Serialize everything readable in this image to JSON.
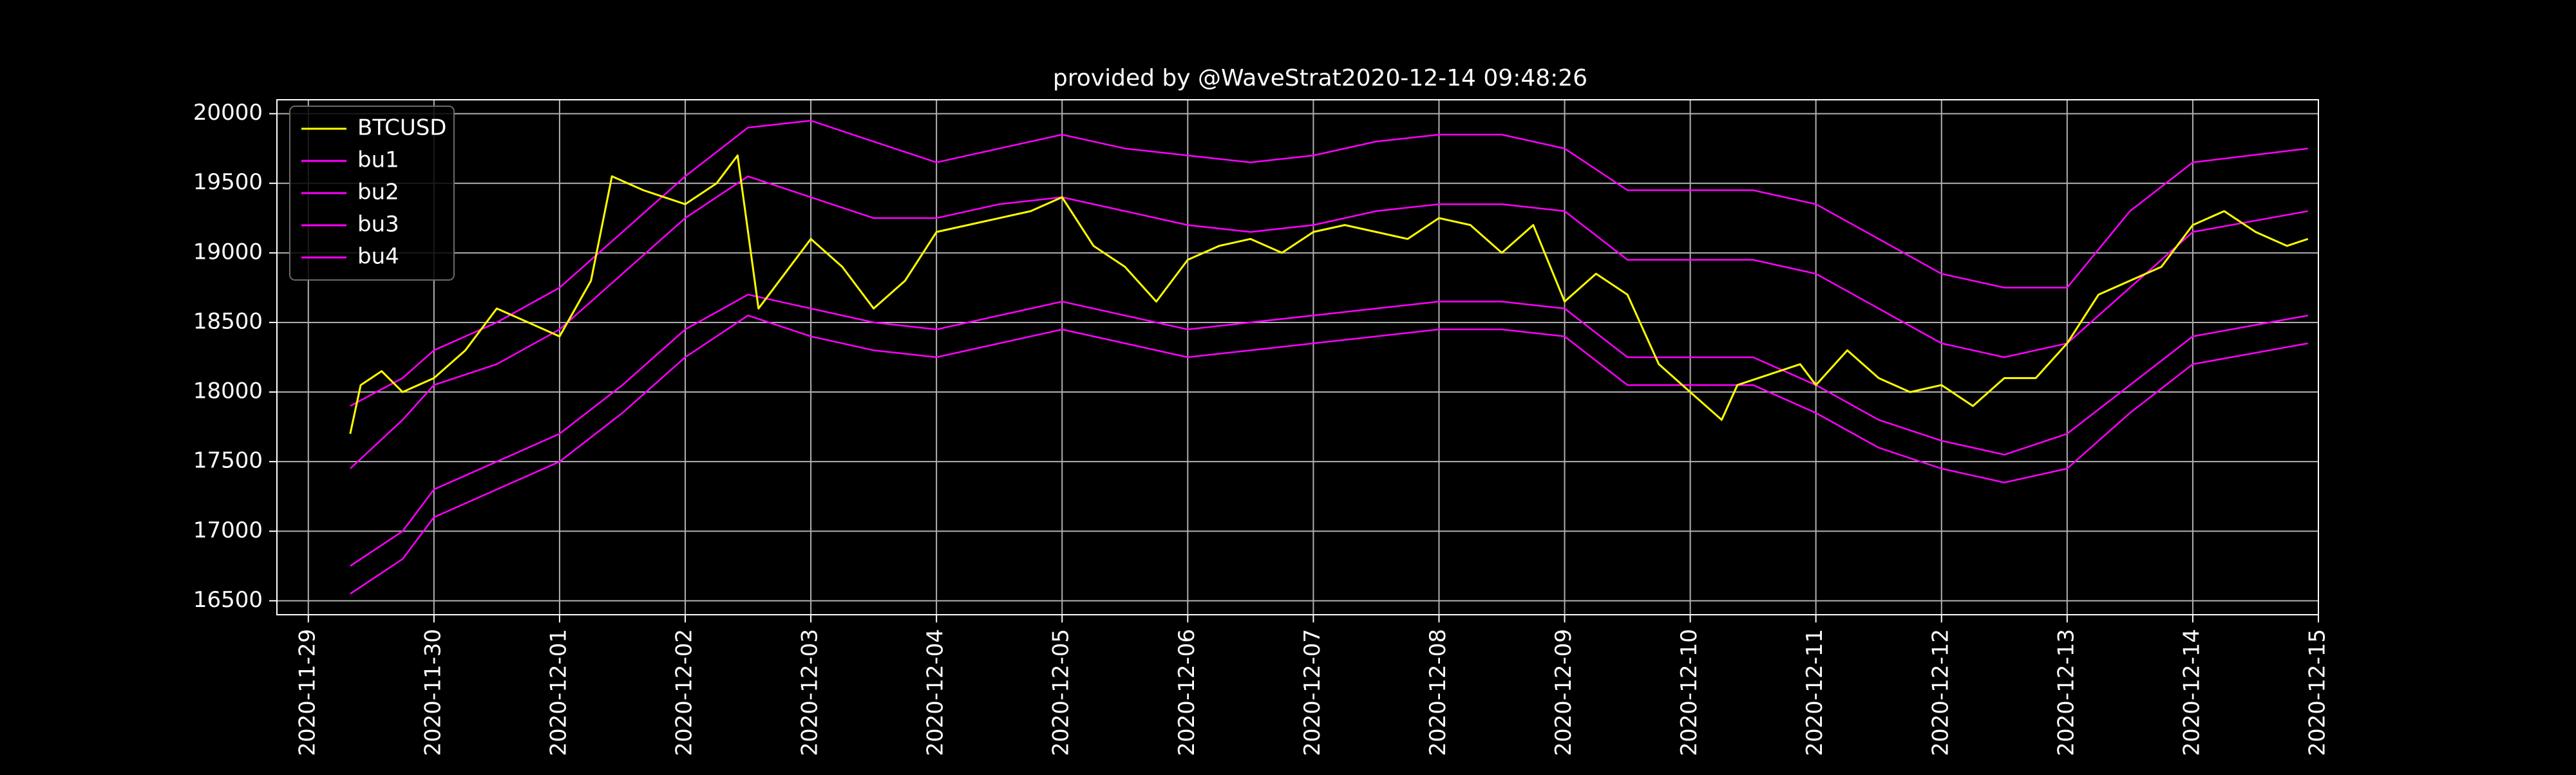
{
  "chart_data": {
    "type": "line",
    "title": "provided by @WaveStrat2020-12-14 09:48:26",
    "xlabel": "",
    "ylabel": "",
    "x_type": "date",
    "xlim": [
      "2020-11-28T18:00",
      "2020-12-15T00:00"
    ],
    "ylim": [
      16400,
      20100
    ],
    "x_ticks": [
      "2020-11-29",
      "2020-11-30",
      "2020-12-01",
      "2020-12-02",
      "2020-12-03",
      "2020-12-04",
      "2020-12-05",
      "2020-12-06",
      "2020-12-07",
      "2020-12-08",
      "2020-12-09",
      "2020-12-10",
      "2020-12-11",
      "2020-12-12",
      "2020-12-13",
      "2020-12-14",
      "2020-12-15"
    ],
    "y_ticks": [
      16500,
      17000,
      17500,
      18000,
      18500,
      19000,
      19500,
      20000
    ],
    "grid": true,
    "legend_position": "top-left",
    "colors": {
      "background": "#000000",
      "grid": "#b0b0b0",
      "text": "#ffffff",
      "price": "#ffff00",
      "bands": "#ff00ff"
    },
    "series": [
      {
        "name": "BTCUSD",
        "color": "#ffff00",
        "points": [
          [
            "2020-11-29T08:00",
            17700
          ],
          [
            "2020-11-29T10:00",
            18050
          ],
          [
            "2020-11-29T14:00",
            18150
          ],
          [
            "2020-11-29T18:00",
            18000
          ],
          [
            "2020-11-30T00:00",
            18100
          ],
          [
            "2020-11-30T06:00",
            18300
          ],
          [
            "2020-11-30T12:00",
            18600
          ],
          [
            "2020-11-30T18:00",
            18500
          ],
          [
            "2020-12-01T00:00",
            18400
          ],
          [
            "2020-12-01T06:00",
            18800
          ],
          [
            "2020-12-01T10:00",
            19550
          ],
          [
            "2020-12-01T16:00",
            19450
          ],
          [
            "2020-12-02T00:00",
            19350
          ],
          [
            "2020-12-02T06:00",
            19500
          ],
          [
            "2020-12-02T10:00",
            19700
          ],
          [
            "2020-12-02T14:00",
            18600
          ],
          [
            "2020-12-03T00:00",
            19100
          ],
          [
            "2020-12-03T06:00",
            18900
          ],
          [
            "2020-12-03T12:00",
            18600
          ],
          [
            "2020-12-03T18:00",
            18800
          ],
          [
            "2020-12-04T00:00",
            19150
          ],
          [
            "2020-12-04T06:00",
            19200
          ],
          [
            "2020-12-04T12:00",
            19250
          ],
          [
            "2020-12-04T18:00",
            19300
          ],
          [
            "2020-12-05T00:00",
            19400
          ],
          [
            "2020-12-05T06:00",
            19050
          ],
          [
            "2020-12-05T12:00",
            18900
          ],
          [
            "2020-12-05T18:00",
            18650
          ],
          [
            "2020-12-06T00:00",
            18950
          ],
          [
            "2020-12-06T06:00",
            19050
          ],
          [
            "2020-12-06T12:00",
            19100
          ],
          [
            "2020-12-06T18:00",
            19000
          ],
          [
            "2020-12-07T00:00",
            19150
          ],
          [
            "2020-12-07T06:00",
            19200
          ],
          [
            "2020-12-07T12:00",
            19150
          ],
          [
            "2020-12-07T18:00",
            19100
          ],
          [
            "2020-12-08T00:00",
            19250
          ],
          [
            "2020-12-08T06:00",
            19200
          ],
          [
            "2020-12-08T12:00",
            19000
          ],
          [
            "2020-12-08T18:00",
            19200
          ],
          [
            "2020-12-09T00:00",
            18650
          ],
          [
            "2020-12-09T06:00",
            18850
          ],
          [
            "2020-12-09T12:00",
            18700
          ],
          [
            "2020-12-09T18:00",
            18200
          ],
          [
            "2020-12-10T00:00",
            18000
          ],
          [
            "2020-12-10T06:00",
            17800
          ],
          [
            "2020-12-10T09:00",
            18050
          ],
          [
            "2020-12-10T21:00",
            18200
          ],
          [
            "2020-12-11T00:00",
            18050
          ],
          [
            "2020-12-11T06:00",
            18300
          ],
          [
            "2020-12-11T12:00",
            18100
          ],
          [
            "2020-12-11T18:00",
            18000
          ],
          [
            "2020-12-12T00:00",
            18050
          ],
          [
            "2020-12-12T06:00",
            17900
          ],
          [
            "2020-12-12T12:00",
            18100
          ],
          [
            "2020-12-12T18:00",
            18100
          ],
          [
            "2020-12-13T00:00",
            18350
          ],
          [
            "2020-12-13T06:00",
            18700
          ],
          [
            "2020-12-13T12:00",
            18800
          ],
          [
            "2020-12-13T18:00",
            18900
          ],
          [
            "2020-12-14T00:00",
            19200
          ],
          [
            "2020-12-14T06:00",
            19300
          ],
          [
            "2020-12-14T12:00",
            19150
          ],
          [
            "2020-12-14T18:00",
            19050
          ],
          [
            "2020-12-14T22:00",
            19100
          ]
        ]
      },
      {
        "name": "bu1",
        "color": "#ff00ff",
        "points": [
          [
            "2020-11-29T08:00",
            17900
          ],
          [
            "2020-11-29T18:00",
            18100
          ],
          [
            "2020-11-30T00:00",
            18300
          ],
          [
            "2020-11-30T12:00",
            18500
          ],
          [
            "2020-12-01T00:00",
            18750
          ],
          [
            "2020-12-01T12:00",
            19150
          ],
          [
            "2020-12-02T00:00",
            19550
          ],
          [
            "2020-12-02T12:00",
            19900
          ],
          [
            "2020-12-03T00:00",
            19950
          ],
          [
            "2020-12-03T12:00",
            19800
          ],
          [
            "2020-12-04T00:00",
            19650
          ],
          [
            "2020-12-04T12:00",
            19750
          ],
          [
            "2020-12-05T00:00",
            19850
          ],
          [
            "2020-12-05T12:00",
            19750
          ],
          [
            "2020-12-06T00:00",
            19700
          ],
          [
            "2020-12-06T12:00",
            19650
          ],
          [
            "2020-12-07T00:00",
            19700
          ],
          [
            "2020-12-07T12:00",
            19800
          ],
          [
            "2020-12-08T00:00",
            19850
          ],
          [
            "2020-12-08T12:00",
            19850
          ],
          [
            "2020-12-09T00:00",
            19750
          ],
          [
            "2020-12-09T12:00",
            19450
          ],
          [
            "2020-12-10T00:00",
            19450
          ],
          [
            "2020-12-10T12:00",
            19450
          ],
          [
            "2020-12-11T00:00",
            19350
          ],
          [
            "2020-12-11T12:00",
            19100
          ],
          [
            "2020-12-12T00:00",
            18850
          ],
          [
            "2020-12-12T12:00",
            18750
          ],
          [
            "2020-12-13T00:00",
            18750
          ],
          [
            "2020-12-13T12:00",
            19300
          ],
          [
            "2020-12-14T00:00",
            19650
          ],
          [
            "2020-12-14T22:00",
            19750
          ]
        ]
      },
      {
        "name": "bu2",
        "color": "#ff00ff",
        "points": [
          [
            "2020-11-29T08:00",
            17450
          ],
          [
            "2020-11-29T18:00",
            17800
          ],
          [
            "2020-11-30T00:00",
            18050
          ],
          [
            "2020-11-30T12:00",
            18200
          ],
          [
            "2020-12-01T00:00",
            18450
          ],
          [
            "2020-12-01T12:00",
            18850
          ],
          [
            "2020-12-02T00:00",
            19250
          ],
          [
            "2020-12-02T12:00",
            19550
          ],
          [
            "2020-12-03T00:00",
            19400
          ],
          [
            "2020-12-03T12:00",
            19250
          ],
          [
            "2020-12-04T00:00",
            19250
          ],
          [
            "2020-12-04T12:00",
            19350
          ],
          [
            "2020-12-05T00:00",
            19400
          ],
          [
            "2020-12-05T12:00",
            19300
          ],
          [
            "2020-12-06T00:00",
            19200
          ],
          [
            "2020-12-06T12:00",
            19150
          ],
          [
            "2020-12-07T00:00",
            19200
          ],
          [
            "2020-12-07T12:00",
            19300
          ],
          [
            "2020-12-08T00:00",
            19350
          ],
          [
            "2020-12-08T12:00",
            19350
          ],
          [
            "2020-12-09T00:00",
            19300
          ],
          [
            "2020-12-09T12:00",
            18950
          ],
          [
            "2020-12-10T00:00",
            18950
          ],
          [
            "2020-12-10T12:00",
            18950
          ],
          [
            "2020-12-11T00:00",
            18850
          ],
          [
            "2020-12-11T12:00",
            18600
          ],
          [
            "2020-12-12T00:00",
            18350
          ],
          [
            "2020-12-12T12:00",
            18250
          ],
          [
            "2020-12-13T00:00",
            18350
          ],
          [
            "2020-12-13T12:00",
            18750
          ],
          [
            "2020-12-14T00:00",
            19150
          ],
          [
            "2020-12-14T22:00",
            19300
          ]
        ]
      },
      {
        "name": "bu3",
        "color": "#ff00ff",
        "points": [
          [
            "2020-11-29T08:00",
            16750
          ],
          [
            "2020-11-29T18:00",
            17000
          ],
          [
            "2020-11-30T00:00",
            17300
          ],
          [
            "2020-11-30T12:00",
            17500
          ],
          [
            "2020-12-01T00:00",
            17700
          ],
          [
            "2020-12-01T12:00",
            18050
          ],
          [
            "2020-12-02T00:00",
            18450
          ],
          [
            "2020-12-02T12:00",
            18700
          ],
          [
            "2020-12-03T00:00",
            18600
          ],
          [
            "2020-12-03T12:00",
            18500
          ],
          [
            "2020-12-04T00:00",
            18450
          ],
          [
            "2020-12-04T12:00",
            18550
          ],
          [
            "2020-12-05T00:00",
            18650
          ],
          [
            "2020-12-05T12:00",
            18550
          ],
          [
            "2020-12-06T00:00",
            18450
          ],
          [
            "2020-12-06T12:00",
            18500
          ],
          [
            "2020-12-07T00:00",
            18550
          ],
          [
            "2020-12-07T12:00",
            18600
          ],
          [
            "2020-12-08T00:00",
            18650
          ],
          [
            "2020-12-08T12:00",
            18650
          ],
          [
            "2020-12-09T00:00",
            18600
          ],
          [
            "2020-12-09T12:00",
            18250
          ],
          [
            "2020-12-10T00:00",
            18250
          ],
          [
            "2020-12-10T12:00",
            18250
          ],
          [
            "2020-12-11T00:00",
            18050
          ],
          [
            "2020-12-11T12:00",
            17800
          ],
          [
            "2020-12-12T00:00",
            17650
          ],
          [
            "2020-12-12T12:00",
            17550
          ],
          [
            "2020-12-13T00:00",
            17700
          ],
          [
            "2020-12-13T12:00",
            18050
          ],
          [
            "2020-12-14T00:00",
            18400
          ],
          [
            "2020-12-14T22:00",
            18550
          ]
        ]
      },
      {
        "name": "bu4",
        "color": "#ff00ff",
        "points": [
          [
            "2020-11-29T08:00",
            16550
          ],
          [
            "2020-11-29T18:00",
            16800
          ],
          [
            "2020-11-30T00:00",
            17100
          ],
          [
            "2020-11-30T12:00",
            17300
          ],
          [
            "2020-12-01T00:00",
            17500
          ],
          [
            "2020-12-01T12:00",
            17850
          ],
          [
            "2020-12-02T00:00",
            18250
          ],
          [
            "2020-12-02T12:00",
            18550
          ],
          [
            "2020-12-03T00:00",
            18400
          ],
          [
            "2020-12-03T12:00",
            18300
          ],
          [
            "2020-12-04T00:00",
            18250
          ],
          [
            "2020-12-04T12:00",
            18350
          ],
          [
            "2020-12-05T00:00",
            18450
          ],
          [
            "2020-12-05T12:00",
            18350
          ],
          [
            "2020-12-06T00:00",
            18250
          ],
          [
            "2020-12-06T12:00",
            18300
          ],
          [
            "2020-12-07T00:00",
            18350
          ],
          [
            "2020-12-07T12:00",
            18400
          ],
          [
            "2020-12-08T00:00",
            18450
          ],
          [
            "2020-12-08T12:00",
            18450
          ],
          [
            "2020-12-09T00:00",
            18400
          ],
          [
            "2020-12-09T12:00",
            18050
          ],
          [
            "2020-12-10T00:00",
            18050
          ],
          [
            "2020-12-10T12:00",
            18050
          ],
          [
            "2020-12-11T00:00",
            17850
          ],
          [
            "2020-12-11T12:00",
            17600
          ],
          [
            "2020-12-12T00:00",
            17450
          ],
          [
            "2020-12-12T12:00",
            17350
          ],
          [
            "2020-12-13T00:00",
            17450
          ],
          [
            "2020-12-13T12:00",
            17850
          ],
          [
            "2020-12-14T00:00",
            18200
          ],
          [
            "2020-12-14T22:00",
            18350
          ]
        ]
      }
    ]
  }
}
